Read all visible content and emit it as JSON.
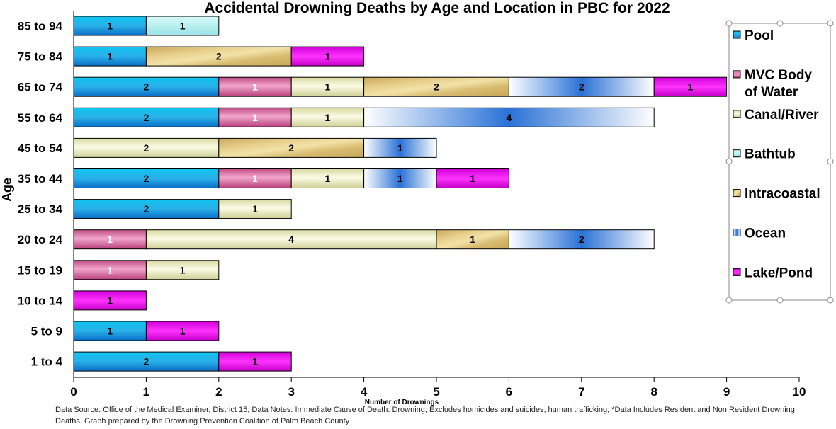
{
  "chart_data": {
    "type": "bar",
    "orientation": "horizontal",
    "stacked": true,
    "title": "Accidental Drowning Deaths by Age and Location in PBC for 2022",
    "xlabel": "Number of Drownings",
    "ylabel": "Age",
    "xlim": [
      0,
      10
    ],
    "xticks": [
      0,
      1,
      2,
      3,
      4,
      5,
      6,
      7,
      8,
      9,
      10
    ],
    "grid": false,
    "legend_position": "right",
    "categories": [
      "85 to 94",
      "75 to 84",
      "65 to 74",
      "55 to 64",
      "45 to 54",
      "35 to 44",
      "25 to 34",
      "20 to 24",
      "15 to 19",
      "10 to 14",
      "5 to 9",
      "1 to 4"
    ],
    "series": [
      {
        "name": "Pool",
        "legend_label": [
          "Pool"
        ],
        "color": "#1ab3e6",
        "values": [
          1,
          1,
          2,
          2,
          0,
          2,
          2,
          0,
          0,
          0,
          1,
          2
        ]
      },
      {
        "name": "MVC Body of Water",
        "legend_label": [
          "MVC Body",
          "of Water"
        ],
        "color": "#d9669e",
        "values": [
          0,
          0,
          1,
          1,
          0,
          1,
          0,
          1,
          1,
          0,
          0,
          0
        ]
      },
      {
        "name": "Canal/River",
        "legend_label": [
          "Canal/River"
        ],
        "color": "#eeeec0",
        "values": [
          0,
          0,
          1,
          1,
          2,
          1,
          1,
          4,
          1,
          0,
          0,
          0
        ]
      },
      {
        "name": "Bathtub",
        "legend_label": [
          "Bathtub"
        ],
        "color": "#bdf2f2",
        "values": [
          1,
          0,
          0,
          0,
          0,
          0,
          0,
          0,
          0,
          0,
          0,
          0
        ]
      },
      {
        "name": "Intracoastal",
        "legend_label": [
          "Intracoastal"
        ],
        "color": "#d9bf73",
        "values": [
          0,
          2,
          2,
          0,
          2,
          0,
          0,
          1,
          0,
          0,
          0,
          0
        ]
      },
      {
        "name": "Ocean",
        "legend_label": [
          "Ocean"
        ],
        "color": "#2a72d6",
        "values": [
          0,
          0,
          2,
          4,
          1,
          1,
          0,
          2,
          0,
          0,
          0,
          0
        ]
      },
      {
        "name": "Lake/Pond",
        "legend_label": [
          "Lake/Pond"
        ],
        "color": "#ee00ee",
        "values": [
          0,
          1,
          1,
          0,
          0,
          1,
          0,
          0,
          0,
          1,
          1,
          1
        ]
      }
    ]
  },
  "footnote": "Data Source: Office of the Medical Examiner, District 15; Data Notes: Immediate Cause of Death: Drowning; Excludes homicides and suicides, human trafficking; *Data Includes Resident and Non Resident Drowning Deaths. Graph prepared by the Drowning Prevention Coalition of Palm Beach County"
}
